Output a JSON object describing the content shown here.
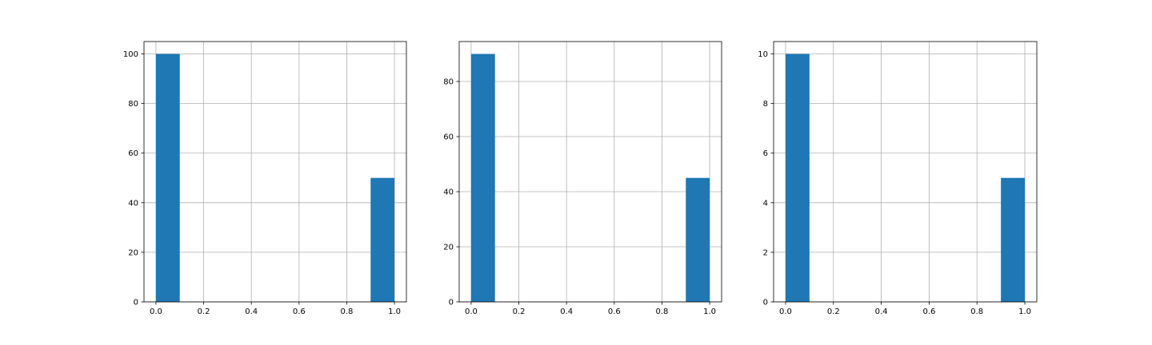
{
  "colors": {
    "bar": "#1f77b4",
    "grid": "#b0b0b0",
    "axis": "#000000",
    "background": "#ffffff"
  },
  "chart_data": [
    {
      "type": "bar",
      "histogram": true,
      "grid": true,
      "bins": [
        {
          "x0": 0.0,
          "x1": 0.1,
          "count": 100
        },
        {
          "x0": 0.9,
          "x1": 1.0,
          "count": 50
        }
      ],
      "xlim": [
        -0.05,
        1.05
      ],
      "ylim": [
        0,
        105
      ],
      "xticks": [
        "0.0",
        "0.2",
        "0.4",
        "0.6",
        "0.8",
        "1.0"
      ],
      "yticks": [
        "0",
        "20",
        "40",
        "60",
        "80",
        "100"
      ]
    },
    {
      "type": "bar",
      "histogram": true,
      "grid": true,
      "bins": [
        {
          "x0": 0.0,
          "x1": 0.1,
          "count": 90
        },
        {
          "x0": 0.9,
          "x1": 1.0,
          "count": 45
        }
      ],
      "xlim": [
        -0.05,
        1.05
      ],
      "ylim": [
        0,
        94.5
      ],
      "xticks": [
        "0.0",
        "0.2",
        "0.4",
        "0.6",
        "0.8",
        "1.0"
      ],
      "yticks": [
        "0",
        "20",
        "40",
        "60",
        "80"
      ]
    },
    {
      "type": "bar",
      "histogram": true,
      "grid": true,
      "bins": [
        {
          "x0": 0.0,
          "x1": 0.1,
          "count": 10
        },
        {
          "x0": 0.9,
          "x1": 1.0,
          "count": 5
        }
      ],
      "xlim": [
        -0.05,
        1.05
      ],
      "ylim": [
        0,
        10.5
      ],
      "xticks": [
        "0.0",
        "0.2",
        "0.4",
        "0.6",
        "0.8",
        "1.0"
      ],
      "yticks": [
        "0",
        "2",
        "4",
        "6",
        "8",
        "10"
      ]
    }
  ]
}
